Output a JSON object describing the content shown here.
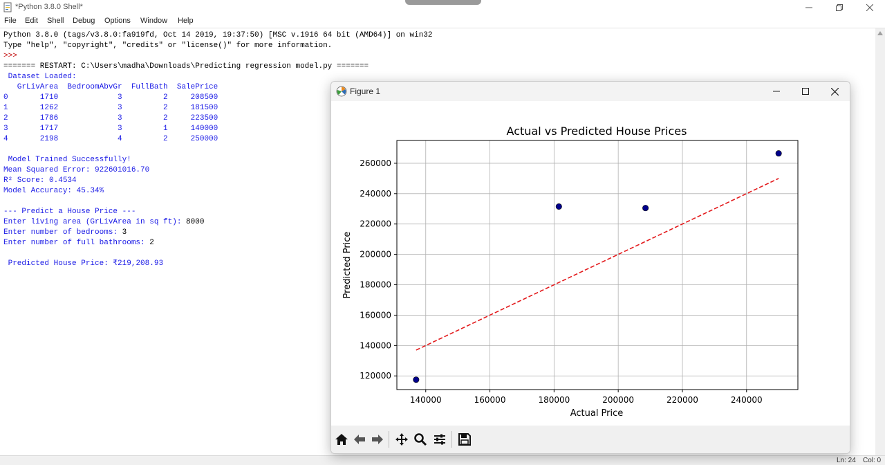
{
  "window": {
    "title": "*Python 3.8.0 Shell*",
    "menu": [
      "File",
      "Edit",
      "Shell",
      "Debug",
      "Options",
      "Window",
      "Help"
    ]
  },
  "shell": {
    "lines": [
      {
        "text": "Python 3.8.0 (tags/v3.8.0:fa919fd, Oct 14 2019, 19:37:50) [MSC v.1916 64 bit (AMD64)] on win32",
        "style": "black"
      },
      {
        "text": "Type \"help\", \"copyright\", \"credits\" or \"license()\" for more information.",
        "style": "black"
      },
      {
        "text": ">>> ",
        "style": "red"
      },
      {
        "text": "======= RESTART: C:\\Users\\madha\\Downloads\\Predicting regression model.py =======",
        "style": "black"
      },
      {
        "text": " Dataset Loaded:",
        "style": "blue"
      },
      {
        "text": "   GrLivArea  BedroomAbvGr  FullBath  SalePrice",
        "style": "blue"
      },
      {
        "text": "0       1710             3         2     208500",
        "style": "blue"
      },
      {
        "text": "1       1262             3         2     181500",
        "style": "blue"
      },
      {
        "text": "2       1786             3         2     223500",
        "style": "blue"
      },
      {
        "text": "3       1717             3         1     140000",
        "style": "blue"
      },
      {
        "text": "4       2198             4         2     250000",
        "style": "blue"
      },
      {
        "text": "",
        "style": "blue"
      },
      {
        "text": " Model Trained Successfully!",
        "style": "blue"
      },
      {
        "text": "Mean Squared Error: 922601016.70",
        "style": "blue"
      },
      {
        "text": "R² Score: 0.4534",
        "style": "blue"
      },
      {
        "text": "Model Accuracy: 45.34%",
        "style": "blue"
      },
      {
        "text": "",
        "style": "blue"
      },
      {
        "text": "--- Predict a House Price ---",
        "style": "blue"
      },
      {
        "text": "Enter living area (GrLivArea in sq ft): ",
        "style": "blue",
        "input": "8000"
      },
      {
        "text": "Enter number of bedrooms: ",
        "style": "blue",
        "input": "3"
      },
      {
        "text": "Enter number of full bathrooms: ",
        "style": "blue",
        "input": "2"
      },
      {
        "text": "",
        "style": "blue"
      },
      {
        "text": " Predicted House Price: ₹219,208.93",
        "style": "blue"
      }
    ]
  },
  "statusbar": {
    "ln": "Ln: 24",
    "col": "Col: 0"
  },
  "figure": {
    "title": "Figure 1",
    "toolbar": [
      "home-icon",
      "back-arrow-icon",
      "forward-arrow-icon",
      "pan-icon",
      "zoom-icon",
      "configure-subplots-icon",
      "save-icon"
    ]
  },
  "chart_data": {
    "type": "scatter",
    "title": "Actual vs Predicted House Prices",
    "xlabel": "Actual Price",
    "ylabel": "Predicted Price",
    "xlim": [
      131000,
      256000
    ],
    "ylim": [
      111000,
      275000
    ],
    "xticks": [
      140000,
      160000,
      180000,
      200000,
      220000,
      240000
    ],
    "yticks": [
      120000,
      140000,
      160000,
      180000,
      200000,
      220000,
      240000,
      260000
    ],
    "grid": true,
    "points": {
      "x": [
        137000,
        181500,
        208500,
        250000
      ],
      "y": [
        117500,
        231500,
        230500,
        266500
      ],
      "color": "#00008b"
    },
    "reference_line": {
      "x": [
        137000,
        250000
      ],
      "y": [
        137000,
        250000
      ],
      "color": "#e31a1c",
      "style": "dashed"
    }
  }
}
